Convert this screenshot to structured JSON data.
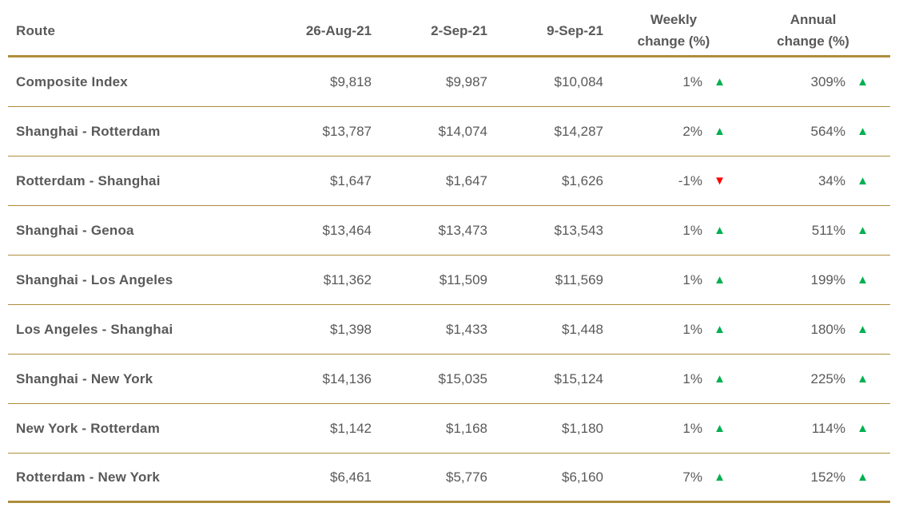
{
  "colors": {
    "border_gold": "#AE8E3C",
    "up_green": "#00B050",
    "down_red": "#FF0000",
    "text_gray": "#595959"
  },
  "header": {
    "route": "Route",
    "date1": "26-Aug-21",
    "date2": "2-Sep-21",
    "date3": "9-Sep-21",
    "weekly_line1": "Weekly",
    "weekly_line2": "change (%)",
    "annual_line1": "Annual",
    "annual_line2": "change (%)"
  },
  "chart_data": {
    "type": "table",
    "columns": [
      "Route",
      "26-Aug-21",
      "2-Sep-21",
      "9-Sep-21",
      "Weekly change (%)",
      "Annual change (%)"
    ],
    "rows": [
      {
        "route": "Composite Index",
        "v1": "$9,818",
        "v2": "$9,987",
        "v3": "$10,084",
        "weekly": "1%",
        "weekly_dir": "up",
        "annual": "309%",
        "annual_dir": "up"
      },
      {
        "route": "Shanghai - Rotterdam",
        "v1": "$13,787",
        "v2": "$14,074",
        "v3": "$14,287",
        "weekly": "2%",
        "weekly_dir": "up",
        "annual": "564%",
        "annual_dir": "up"
      },
      {
        "route": "Rotterdam - Shanghai",
        "v1": "$1,647",
        "v2": "$1,647",
        "v3": "$1,626",
        "weekly": "-1%",
        "weekly_dir": "down",
        "annual": "34%",
        "annual_dir": "up"
      },
      {
        "route": "Shanghai - Genoa",
        "v1": "$13,464",
        "v2": "$13,473",
        "v3": "$13,543",
        "weekly": "1%",
        "weekly_dir": "up",
        "annual": "511%",
        "annual_dir": "up"
      },
      {
        "route": "Shanghai - Los Angeles",
        "v1": "$11,362",
        "v2": "$11,509",
        "v3": "$11,569",
        "weekly": "1%",
        "weekly_dir": "up",
        "annual": "199%",
        "annual_dir": "up"
      },
      {
        "route": "Los Angeles - Shanghai",
        "v1": "$1,398",
        "v2": "$1,433",
        "v3": "$1,448",
        "weekly": "1%",
        "weekly_dir": "up",
        "annual": "180%",
        "annual_dir": "up"
      },
      {
        "route": "Shanghai - New York",
        "v1": "$14,136",
        "v2": "$15,035",
        "v3": "$15,124",
        "weekly": "1%",
        "weekly_dir": "up",
        "annual": "225%",
        "annual_dir": "up"
      },
      {
        "route": "New York - Rotterdam",
        "v1": "$1,142",
        "v2": "$1,168",
        "v3": "$1,180",
        "weekly": "1%",
        "weekly_dir": "up",
        "annual": "114%",
        "annual_dir": "up"
      },
      {
        "route": "Rotterdam - New York",
        "v1": "$6,461",
        "v2": "$5,776",
        "v3": "$6,160",
        "weekly": "7%",
        "weekly_dir": "up",
        "annual": "152%",
        "annual_dir": "up"
      }
    ]
  }
}
